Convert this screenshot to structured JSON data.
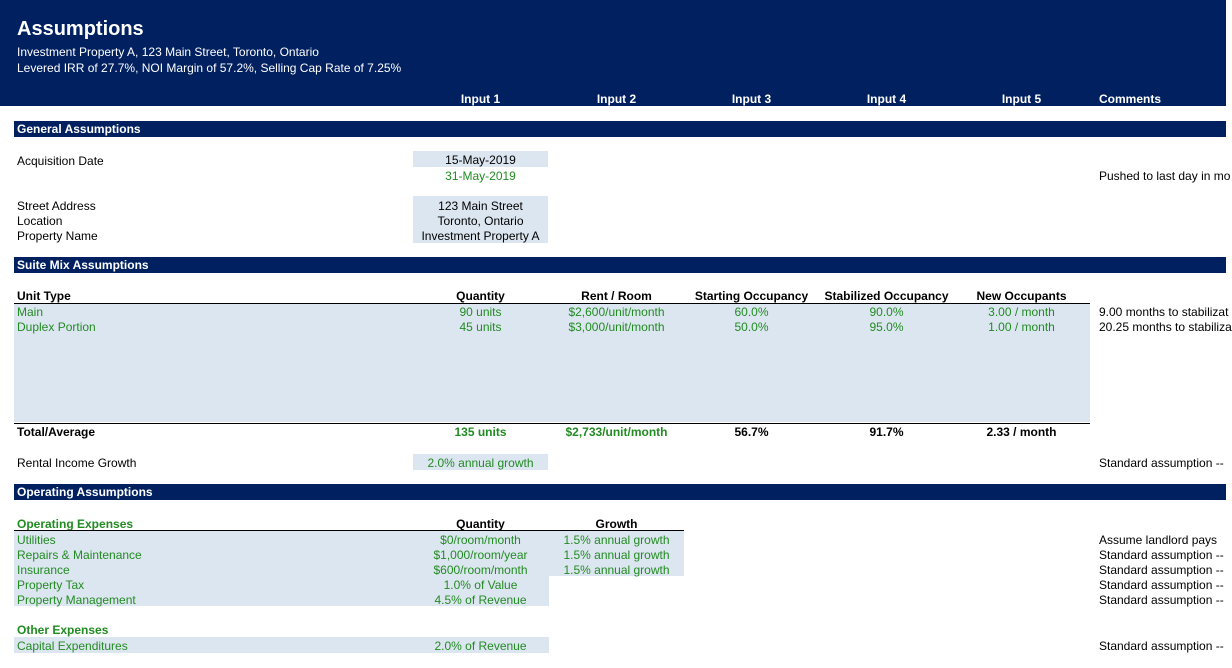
{
  "header": {
    "title": "Assumptions",
    "subtitle1": "Investment Property A, 123 Main Street, Toronto, Ontario",
    "subtitle2": "Levered IRR of 27.7%, NOI Margin of 57.2%, Selling Cap Rate of 7.25%"
  },
  "columns": [
    "Input 1",
    "Input 2",
    "Input 3",
    "Input 4",
    "Input 5",
    "Comments"
  ],
  "general": {
    "title": "General Assumptions",
    "acq_label": "Acquisition Date",
    "acq_date": "15-May-2019",
    "acq_adjusted": "31-May-2019",
    "acq_comment": "Pushed to last day in mo",
    "street_label": "Street Address",
    "street": "123 Main Street",
    "location_label": "Location",
    "location": "Toronto, Ontario",
    "name_label": "Property Name",
    "name": "Investment Property A"
  },
  "suite": {
    "title": "Suite Mix Assumptions",
    "headers": [
      "Unit Type",
      "Quantity",
      "Rent / Room",
      "Starting Occupancy",
      "Stabilized Occupancy",
      "New Occupants"
    ],
    "rows": [
      {
        "type": "Main",
        "qty": "90 units",
        "rent": "$2,600/unit/month",
        "start": "60.0%",
        "stab": "90.0%",
        "new": "3.00 / month",
        "comment": "9.00 months to stabilizat"
      },
      {
        "type": "Duplex Portion",
        "qty": "45 units",
        "rent": "$3,000/unit/month",
        "start": "50.0%",
        "stab": "95.0%",
        "new": "1.00 / month",
        "comment": "20.25 months to stabiliza"
      }
    ],
    "total": {
      "type": "Total/Average",
      "qty": "135 units",
      "rent": "$2,733/unit/month",
      "start": "56.7%",
      "stab": "91.7%",
      "new": "2.33 / month"
    },
    "growth_label": "Rental Income Growth",
    "growth": "2.0% annual growth",
    "growth_comment": "Standard assumption --"
  },
  "operating": {
    "title": "Operating Assumptions",
    "opex_title": "Operating Expenses",
    "qty_header": "Quantity",
    "growth_header": "Growth",
    "rows": [
      {
        "label": "Utilities",
        "qty": "$0/room/month",
        "growth": "1.5% annual growth",
        "comment": "Assume landlord pays"
      },
      {
        "label": "Repairs & Maintenance",
        "qty": "$1,000/room/year",
        "growth": "1.5% annual growth",
        "comment": "Standard assumption --"
      },
      {
        "label": "Insurance",
        "qty": "$600/room/month",
        "growth": "1.5% annual growth",
        "comment": "Standard assumption --"
      },
      {
        "label": "Property Tax",
        "qty": "1.0% of Value",
        "growth": "",
        "comment": "Standard assumption --"
      },
      {
        "label": "Property Management",
        "qty": "4.5% of Revenue",
        "growth": "",
        "comment": "Standard assumption --"
      }
    ],
    "other_title": "Other Expenses",
    "capex_label": "Capital Expenditures",
    "capex": "2.0% of Revenue",
    "capex_comment": "Standard assumption --"
  }
}
